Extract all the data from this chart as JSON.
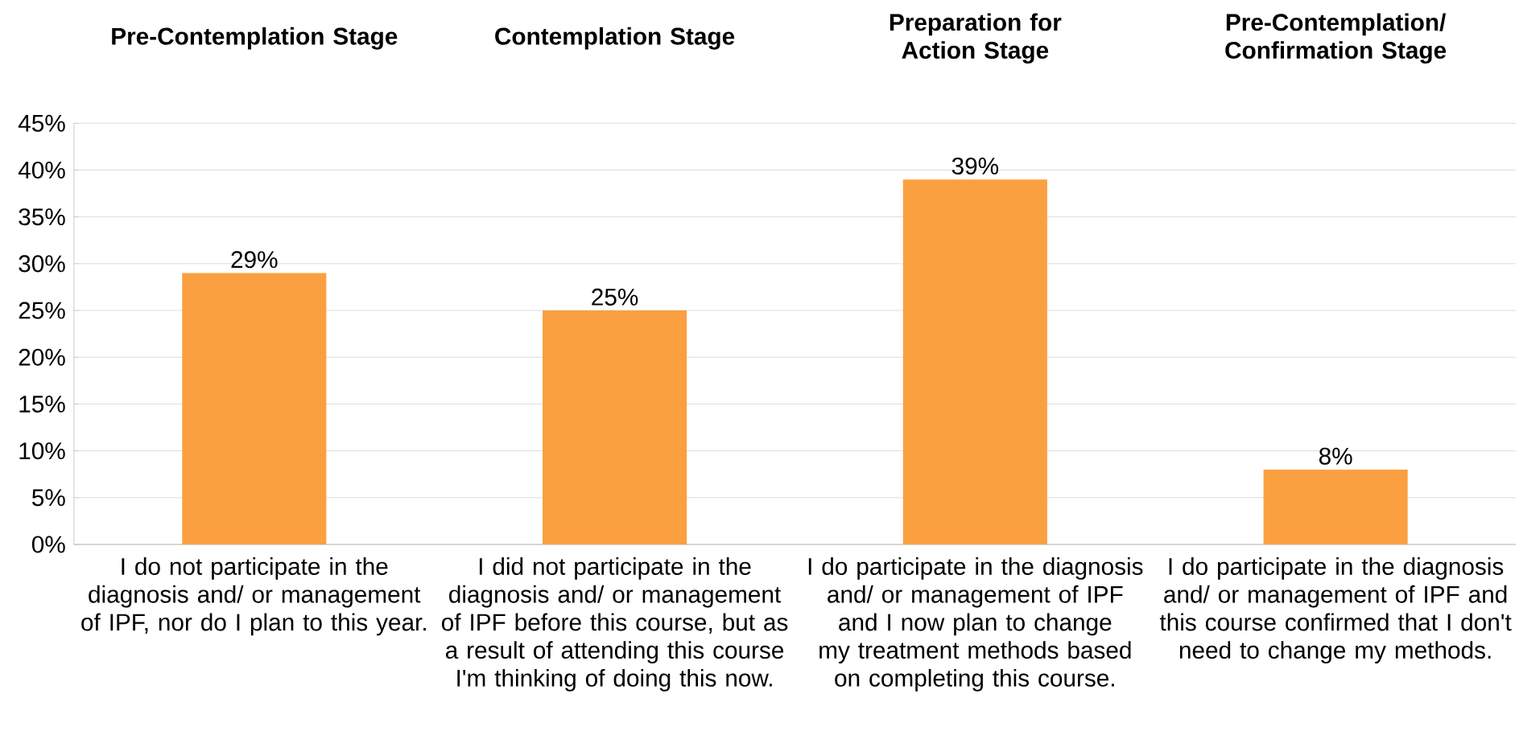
{
  "chart_data": {
    "type": "bar",
    "categories": [
      "I do not participate in the diagnosis and/ or management of IPF, nor do I plan to this year.",
      "I did not participate in the diagnosis and/ or management of IPF before this course, but as a result of attending this course I'm thinking of doing this now.",
      "I do participate in the diagnosis and/ or management of IPF and I now plan to change my treatment methods based on completing this course.",
      "I do participate in the diagnosis and/ or management of IPF and this course confirmed that I don't need to change my methods."
    ],
    "values": [
      29,
      25,
      39,
      8
    ],
    "value_labels": [
      "29%",
      "25%",
      "39%",
      "8%"
    ],
    "color": "#fba040",
    "annotations": [
      "Pre-Contemplation Stage",
      "Contemplation Stage",
      "Preparation for Action Stage",
      "Pre-Contemplation/ Confirmation Stage"
    ],
    "ylim": [
      0,
      45
    ],
    "yticks": [
      {
        "value": 0,
        "label": "0%"
      },
      {
        "value": 5,
        "label": "5%"
      },
      {
        "value": 10,
        "label": "10%"
      },
      {
        "value": 15,
        "label": "15%"
      },
      {
        "value": 20,
        "label": "20%"
      },
      {
        "value": 25,
        "label": "25%"
      },
      {
        "value": 30,
        "label": "30%"
      },
      {
        "value": 35,
        "label": "35%"
      },
      {
        "value": 40,
        "label": "40%"
      },
      {
        "value": 45,
        "label": "45%"
      }
    ],
    "grid": "y"
  }
}
